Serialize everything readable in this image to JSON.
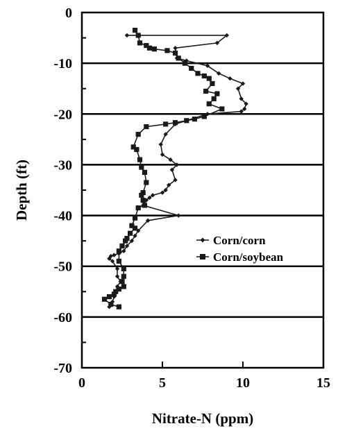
{
  "chart_data": {
    "type": "line",
    "xlabel": "Nitrate-N (ppm)",
    "ylabel": "Depth (ft)",
    "xlim": [
      0,
      15
    ],
    "ylim": [
      -70,
      0
    ],
    "xticks": [
      0,
      5,
      10,
      15
    ],
    "yticks": [
      0,
      -10,
      -20,
      -30,
      -40,
      -50,
      -60,
      -70
    ],
    "horizontal_lines": [
      -10,
      -20,
      -30,
      -40,
      -50,
      -60
    ],
    "legend_position": "right-center",
    "series": [
      {
        "name": "Corn/corn",
        "marker": "diamond",
        "x": [
          2.8,
          9.0,
          8.4,
          5.8,
          5.9,
          6.5,
          7.8,
          8.5,
          9.2,
          10.0,
          9.7,
          9.9,
          10.2,
          10.1,
          9.9,
          7.8,
          5.8,
          5.2,
          4.9,
          5.0,
          5.5,
          5.9,
          5.6,
          5.8,
          5.4,
          5.2,
          5.0,
          4.4,
          4.2,
          4.0,
          3.8,
          6.0,
          4.1,
          3.5,
          3.3,
          3.1,
          2.8,
          2.6,
          2.3,
          2.0,
          1.8,
          1.7,
          1.9,
          2.2,
          2.2,
          2.4,
          2.2,
          2.1,
          2.0,
          1.9,
          1.8,
          1.7
        ],
        "y": [
          -4.5,
          -4.5,
          -6,
          -7,
          -9,
          -9.5,
          -10.5,
          -12,
          -13,
          -14,
          -15,
          -17,
          -18,
          -19,
          -19.5,
          -20,
          -22,
          -24,
          -26,
          -28,
          -29,
          -30,
          -31,
          -33,
          -34,
          -35,
          -35.5,
          -36,
          -36.5,
          -37,
          -38,
          -40,
          -41,
          -43,
          -44,
          -45,
          -46,
          -47,
          -47.5,
          -47.8,
          -48,
          -48.5,
          -49,
          -50.5,
          -52,
          -53,
          -54,
          -55,
          -56,
          -57,
          -57.5,
          -58
        ]
      },
      {
        "name": "Corn/soybean",
        "marker": "square",
        "x": [
          3.3,
          3.5,
          3.6,
          4.0,
          4.2,
          4.5,
          5.3,
          5.8,
          6.0,
          6.4,
          6.8,
          7.2,
          7.6,
          7.9,
          8.1,
          7.7,
          8.4,
          8.2,
          7.9,
          8.7,
          7.6,
          7.0,
          6.5,
          5.8,
          5.2,
          4.0,
          3.5,
          3.2,
          3.4,
          3.6,
          3.7,
          3.9,
          4.0,
          3.8,
          3.7,
          3.8,
          3.9,
          3.5,
          3.3,
          3.1,
          3.3,
          3.0,
          2.8,
          2.7,
          2.5,
          2.3,
          2.3,
          2.6,
          2.6,
          2.5,
          2.6,
          2.3,
          2.1,
          2.0,
          1.7,
          1.4,
          1.8,
          2.3
        ],
        "y": [
          -3.5,
          -4.5,
          -6,
          -6.5,
          -7,
          -7.2,
          -7.5,
          -8,
          -9,
          -10,
          -11,
          -12,
          -12.5,
          -13,
          -14,
          -15.5,
          -16,
          -17,
          -18,
          -19,
          -20.5,
          -21,
          -21.3,
          -21.7,
          -22,
          -22.5,
          -24,
          -26.5,
          -27,
          -29,
          -30.5,
          -31.5,
          -33.5,
          -35.5,
          -36,
          -37,
          -38,
          -38.5,
          -40.5,
          -42,
          -42.5,
          -43.5,
          -44.5,
          -45,
          -46,
          -47,
          -49,
          -50.5,
          -52,
          -53,
          -54,
          -54.5,
          -55,
          -55.5,
          -56,
          -56.5,
          -57.5,
          -58
        ]
      }
    ]
  },
  "colors": {
    "line": "#1a1a1a",
    "background": "#ffffff"
  }
}
